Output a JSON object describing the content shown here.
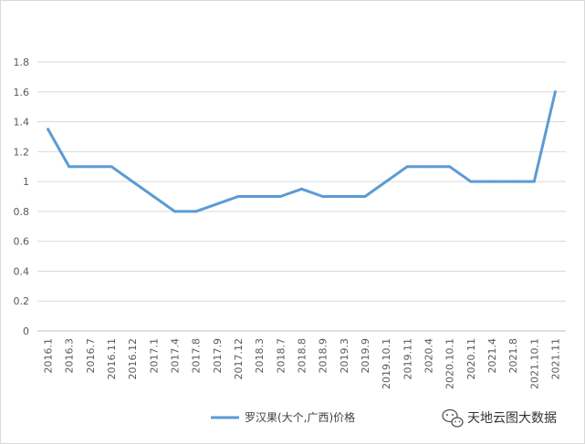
{
  "chart_data": {
    "type": "line",
    "title": "",
    "xlabel": "",
    "ylabel": "",
    "categories": [
      "2016.1",
      "2016.3",
      "2016.7",
      "2016.11",
      "2016.12",
      "2017.1",
      "2017.4",
      "2017.8",
      "2017.9",
      "2017.12",
      "2018.3",
      "2018.7",
      "2018.8",
      "2018.9",
      "2019.3",
      "2019.9",
      "2019.10.1",
      "2019.11",
      "2020.4",
      "2020.10.1",
      "2020.11",
      "2021.4",
      "2021.8",
      "2021.10.1",
      "2021.11"
    ],
    "series": [
      {
        "name": "罗汉果(大个,广西)价格",
        "color": "#5b9bd5",
        "values": [
          1.35,
          1.1,
          1.1,
          1.1,
          1.0,
          0.9,
          0.8,
          0.8,
          0.85,
          0.9,
          0.9,
          0.9,
          0.95,
          0.9,
          0.9,
          0.9,
          1.0,
          1.1,
          1.1,
          1.1,
          1.0,
          1.0,
          1.0,
          1.0,
          1.6
        ]
      }
    ],
    "yticks": [
      "0",
      "0.2",
      "0.4",
      "0.6",
      "0.8",
      "1",
      "1.2",
      "1.4",
      "1.6",
      "1.8"
    ],
    "ylim": [
      0,
      1.8
    ],
    "grid": true,
    "legend": "bottom"
  },
  "watermark": {
    "text": "天地云图大数据",
    "icon": "wechat-icon"
  }
}
